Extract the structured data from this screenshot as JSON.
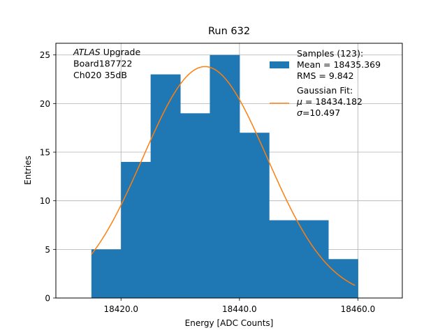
{
  "chart_data": {
    "type": "bar",
    "title": "Run 632",
    "xlabel": "Energy [ADC Counts]",
    "ylabel": "Entries",
    "xlim": [
      18409.0,
      18467.5
    ],
    "ylim": [
      0,
      26.2
    ],
    "grid": true,
    "xticks": [
      18420.0,
      18440.0,
      18460.0
    ],
    "xtick_labels": [
      "18420.0",
      "18440.0",
      "18460.0"
    ],
    "yticks": [
      0,
      5,
      10,
      15,
      20,
      25
    ],
    "ytick_labels": [
      "0",
      "5",
      "10",
      "15",
      "20",
      "25"
    ],
    "bin_edges": [
      18415.0,
      18420.0,
      18425.0,
      18430.0,
      18435.0,
      18440.0,
      18445.0,
      18450.0,
      18455.0,
      18460.0
    ],
    "bin_counts": [
      5,
      14,
      23,
      19,
      25,
      17,
      8,
      8,
      4
    ],
    "hist_color": "#1f77b4",
    "fit": {
      "color": "#ff7f0e",
      "x_range": [
        18415.0,
        18459.5
      ],
      "amplitude": 23.8,
      "mu": 18434.182,
      "sigma": 10.497
    },
    "annotation": {
      "lines": [
        {
          "italic": "ATLAS",
          "text": " Upgrade"
        },
        {
          "italic": "",
          "text": " Board187722"
        },
        {
          "italic": "",
          "text": " Ch020 35dB"
        }
      ]
    },
    "legend": {
      "position": "top-right",
      "entries": [
        {
          "lines": [
            "Samples (123):",
            " Mean = 18435.369",
            " RMS = 9.842"
          ]
        },
        {
          "lines": [
            "Gaussian Fit:",
            " μ = 18434.182",
            " σ=10.497"
          ]
        }
      ]
    }
  }
}
